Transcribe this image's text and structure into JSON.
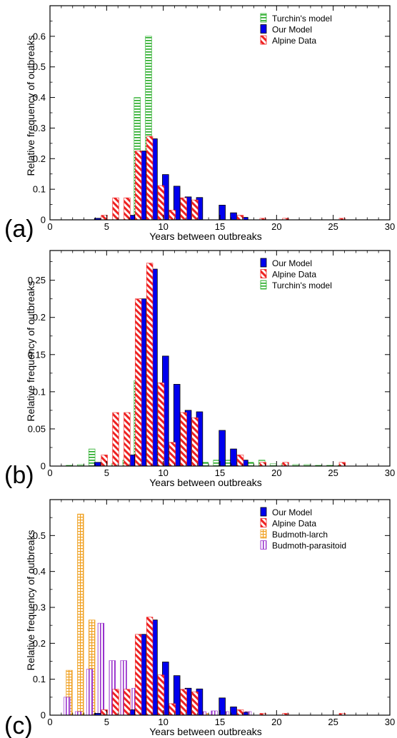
{
  "colors": {
    "our_model": "#0000ee",
    "alpine": "#ee2222",
    "turchin": "#22aa22",
    "larch": "#f0a020",
    "parasitoid": "#9933cc"
  },
  "chart_data": [
    {
      "type": "bar",
      "panel_label": "(a)",
      "xlabel": "Years between outbreaks",
      "ylabel": "Relative frequency of outbreaks",
      "xlim": [
        0,
        30
      ],
      "ylim": [
        0,
        0.7
      ],
      "xticks": [
        0,
        5,
        10,
        15,
        20,
        25,
        30
      ],
      "yticks": [
        0,
        0.1,
        0.2,
        0.3,
        0.4,
        0.5,
        0.6
      ],
      "ytick_labels": [
        "0",
        "0.1",
        "0.2",
        "0.3",
        "0.4",
        "0.5",
        "0.6"
      ],
      "legend_position": "top-right",
      "legend": [
        "turchin",
        "our",
        "alpine"
      ],
      "series": [
        {
          "key": "turchin",
          "name": "Turchin's model",
          "color": "#22aa22",
          "fill": "hstripe",
          "offset": -0.3,
          "x": [
            8,
            9
          ],
          "values": [
            0.4,
            0.6
          ]
        },
        {
          "key": "our",
          "name": "Our Model",
          "color": "#0000ee",
          "fill": "solid",
          "offset": 0.2,
          "x": [
            4,
            7,
            8,
            9,
            10,
            11,
            12,
            13,
            15,
            16,
            17
          ],
          "values": [
            0.005,
            0.015,
            0.225,
            0.265,
            0.148,
            0.11,
            0.075,
            0.073,
            0.048,
            0.023,
            0.008
          ]
        },
        {
          "key": "alpine",
          "name": "Alpine Data",
          "color": "#ee2222",
          "fill": "diag",
          "offset": -0.2,
          "x": [
            5,
            6,
            7,
            8,
            9,
            10,
            11,
            12,
            13,
            17,
            19,
            21,
            26
          ],
          "values": [
            0.015,
            0.072,
            0.072,
            0.225,
            0.273,
            0.112,
            0.032,
            0.072,
            0.065,
            0.015,
            0.005,
            0.005,
            0.005
          ]
        }
      ]
    },
    {
      "type": "bar",
      "panel_label": "(b)",
      "xlabel": "Years between outbreaks",
      "ylabel": "Relative frequency of outbreaks",
      "xlim": [
        0,
        30
      ],
      "ylim": [
        0,
        0.29
      ],
      "xticks": [
        0,
        5,
        10,
        15,
        20,
        25,
        30
      ],
      "yticks": [
        0,
        0.05,
        0.1,
        0.15,
        0.2,
        0.25
      ],
      "ytick_labels": [
        "0",
        "0.05",
        "0.1",
        "0.15",
        "0.2",
        "0.25"
      ],
      "legend_position": "top-right",
      "legend": [
        "our",
        "alpine",
        "turchin"
      ],
      "series": [
        {
          "key": "turchin",
          "name": "Turchin's model",
          "color": "#22aa22",
          "fill": "hstripe",
          "offset": -0.3,
          "x": [
            2,
            3,
            4,
            5,
            6,
            7,
            8,
            9,
            10,
            11,
            12,
            13,
            14,
            15,
            16,
            17,
            18,
            19,
            20,
            21,
            22,
            23,
            24,
            25,
            26
          ],
          "values": [
            0.001,
            0.002,
            0.023,
            0.005,
            0.003,
            0.008,
            0.115,
            0.045,
            0.038,
            0.025,
            0.013,
            0.013,
            0.005,
            0.008,
            0.008,
            0.005,
            0.005,
            0.008,
            0.003,
            0.003,
            0.002,
            0.002,
            0.001,
            0.001,
            0.001
          ]
        },
        {
          "key": "our",
          "name": "Our Model",
          "color": "#0000ee",
          "fill": "solid",
          "offset": 0.2,
          "x": [
            4,
            7,
            8,
            9,
            10,
            11,
            12,
            13,
            15,
            16,
            17
          ],
          "values": [
            0.005,
            0.015,
            0.225,
            0.265,
            0.148,
            0.11,
            0.075,
            0.073,
            0.048,
            0.023,
            0.008
          ]
        },
        {
          "key": "alpine",
          "name": "Alpine Data",
          "color": "#ee2222",
          "fill": "diag",
          "offset": -0.2,
          "x": [
            5,
            6,
            7,
            8,
            9,
            10,
            11,
            12,
            13,
            17,
            19,
            21,
            26
          ],
          "values": [
            0.015,
            0.072,
            0.072,
            0.225,
            0.273,
            0.112,
            0.032,
            0.072,
            0.065,
            0.015,
            0.005,
            0.005,
            0.005
          ]
        }
      ]
    },
    {
      "type": "bar",
      "panel_label": "(c)",
      "xlabel": "Years between outbreaks",
      "ylabel": "Relative frequency of outbreaks",
      "xlim": [
        0,
        30
      ],
      "ylim": [
        0,
        0.6
      ],
      "xticks": [
        0,
        5,
        10,
        15,
        20,
        25,
        30
      ],
      "yticks": [
        0,
        0.1,
        0.2,
        0.3,
        0.4,
        0.5
      ],
      "ytick_labels": [
        "0",
        "0.1",
        "0.2",
        "0.3",
        "0.4",
        "0.5"
      ],
      "legend_position": "top-right",
      "legend": [
        "our",
        "alpine",
        "larch",
        "parasitoid"
      ],
      "series": [
        {
          "key": "larch",
          "name": "Budmoth-larch",
          "color": "#f0a020",
          "fill": "cross",
          "offset": -0.3,
          "x": [
            2,
            3,
            4,
            6,
            8,
            10,
            12,
            14
          ],
          "values": [
            0.125,
            0.56,
            0.265,
            0.02,
            0.015,
            0.01,
            0.005,
            0.005
          ]
        },
        {
          "key": "parasitoid",
          "name": "Budmoth-parasitoid",
          "color": "#9933cc",
          "fill": "vstripe",
          "offset": -0.5,
          "x": [
            2,
            3,
            4,
            5,
            6,
            7,
            8,
            9,
            10,
            11,
            12,
            13,
            14,
            15,
            16,
            17,
            18
          ],
          "values": [
            0.05,
            0.01,
            0.128,
            0.256,
            0.152,
            0.152,
            0.075,
            0.052,
            0.04,
            0.025,
            0.015,
            0.01,
            0.01,
            0.012,
            0.01,
            0.01,
            0.01
          ]
        },
        {
          "key": "our",
          "name": "Our Model",
          "color": "#0000ee",
          "fill": "solid",
          "offset": 0.2,
          "x": [
            4,
            7,
            8,
            9,
            10,
            11,
            12,
            13,
            15,
            16,
            17
          ],
          "values": [
            0.005,
            0.015,
            0.225,
            0.265,
            0.148,
            0.11,
            0.075,
            0.073,
            0.048,
            0.023,
            0.008
          ]
        },
        {
          "key": "alpine",
          "name": "Alpine Data",
          "color": "#ee2222",
          "fill": "diag",
          "offset": -0.2,
          "x": [
            5,
            6,
            7,
            8,
            9,
            10,
            11,
            12,
            13,
            17,
            19,
            21,
            26
          ],
          "values": [
            0.015,
            0.072,
            0.072,
            0.225,
            0.273,
            0.112,
            0.032,
            0.072,
            0.065,
            0.015,
            0.005,
            0.005,
            0.005
          ]
        }
      ]
    }
  ]
}
